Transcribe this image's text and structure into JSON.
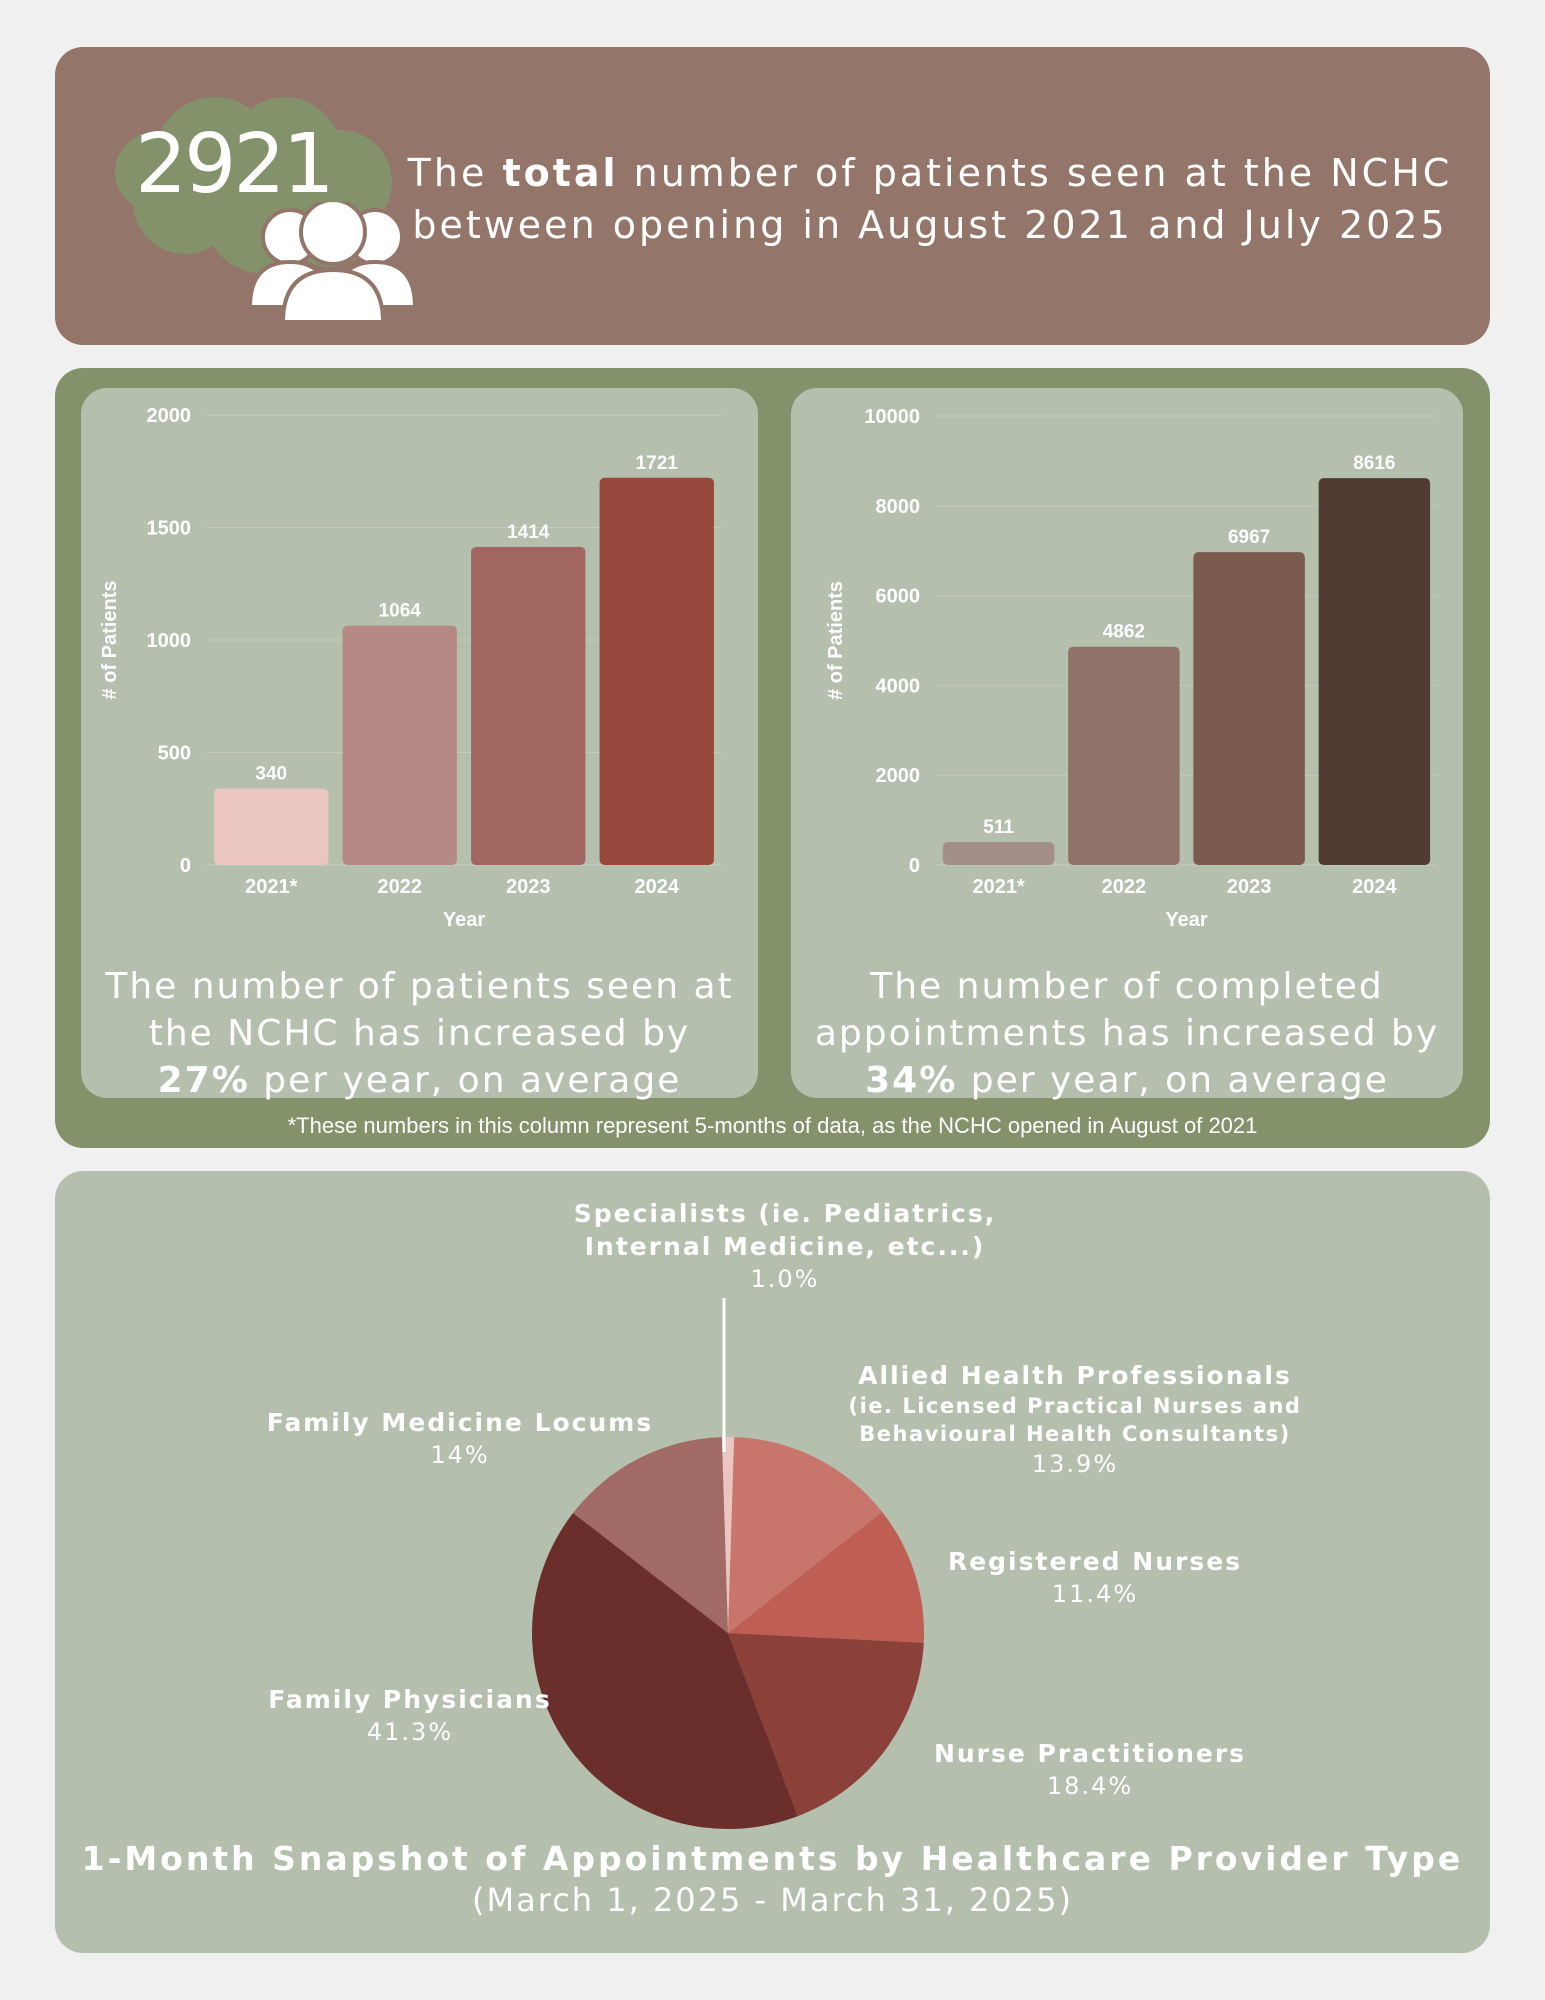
{
  "header": {
    "total": "2921",
    "line1_pre": "The ",
    "line1_bold": "total",
    "line1_post": " number of patients seen at the NCHC",
    "line2": "between opening in August 2021 and July 2025"
  },
  "colors": {
    "header_bg": "#937569",
    "middle_bg": "#84926b",
    "card_bg": "#b5bfae",
    "cloud": "#84926b"
  },
  "chart_data": [
    {
      "type": "bar",
      "categories": [
        "2021*",
        "2022",
        "2023",
        "2024"
      ],
      "values": [
        340,
        1064,
        1414,
        1721
      ],
      "colors": [
        "#ebc5c1",
        "#b68a84",
        "#a1665f",
        "#96483c"
      ],
      "xlabel": "Year",
      "ylabel": "# of Patients",
      "ylim": [
        0,
        2000
      ],
      "yticks": [
        0,
        500,
        1000,
        1500,
        2000
      ],
      "grid": true
    },
    {
      "type": "bar",
      "categories": [
        "2021*",
        "2022",
        "2023",
        "2024"
      ],
      "values": [
        511,
        4862,
        6967,
        8616
      ],
      "colors": [
        "#a48e88",
        "#917268",
        "#7c5b4f",
        "#513b33"
      ],
      "xlabel": "Year",
      "ylabel": "# of Patients",
      "ylim": [
        0,
        10000
      ],
      "yticks": [
        0,
        2000,
        4000,
        6000,
        8000,
        10000
      ],
      "grid": true
    },
    {
      "type": "pie",
      "title": "1-Month Snapshot of Appointments by Healthcare Provider Type",
      "subtitle": "(March 1, 2025 - March 31, 2025)",
      "slices": [
        {
          "label": "Specialists (ie. Pediatrics, Internal Medicine, etc...)",
          "value": 1.0,
          "pct_text": "1.0%",
          "color": "#ecc5c1"
        },
        {
          "label": "Allied Health Professionals (ie. Licensed Practical Nurses and Behavioural Health Consultants)",
          "value": 13.9,
          "pct_text": "13.9%",
          "color": "#c8766c"
        },
        {
          "label": "Registered Nurses",
          "value": 11.4,
          "pct_text": "11.4%",
          "color": "#bf5f53"
        },
        {
          "label": "Nurse Practitioners",
          "value": 18.4,
          "pct_text": "18.4%",
          "color": "#8b4039"
        },
        {
          "label": "Family Physicians",
          "value": 41.3,
          "pct_text": "41.3%",
          "color": "#6b2f2b"
        },
        {
          "label": "Family Medicine Locums",
          "value": 14,
          "pct_text": "14%",
          "color": "#a26a64"
        }
      ]
    }
  ],
  "captions": {
    "left_line1": "The number of patients seen at",
    "left_line2": "the NCHC has increased by",
    "left_bold": "27%",
    "left_post": " per year, on average",
    "right_line1": "The number of completed",
    "right_line2": "appointments has increased by",
    "right_bold": "34%",
    "right_post": " per year, on average"
  },
  "footnote": "*These numbers in this column represent 5-months of data, as the NCHC opened in August of 2021",
  "pie_labels": {
    "specialists_l1": "Specialists (ie. Pediatrics,",
    "specialists_l2": "Internal Medicine, etc...)",
    "allied_l1": "Allied Health Professionals",
    "allied_l2": "(ie. Licensed Practical Nurses and",
    "allied_l3": "Behavioural Health Consultants)",
    "rn": "Registered Nurses",
    "np": "Nurse Practitioners",
    "fp": "Family Physicians",
    "locums": "Family Medicine Locums"
  }
}
